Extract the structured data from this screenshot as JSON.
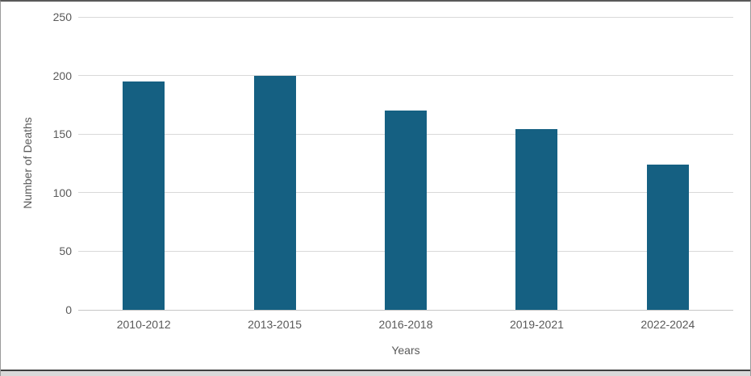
{
  "chart_data": {
    "type": "bar",
    "categories": [
      "2010-2012",
      "2013-2015",
      "2016-2018",
      "2019-2021",
      "2022-2024"
    ],
    "values": [
      195,
      200,
      170,
      154,
      124
    ],
    "xlabel": "Years",
    "ylabel": "Number of Deaths",
    "ylim": [
      0,
      250
    ],
    "yticks": [
      0,
      50,
      100,
      150,
      200,
      250
    ],
    "grid": true,
    "legend": "none",
    "bar_color": "#156082",
    "gridline_color": "#d9d9d9",
    "baseline_color": "#c6c6c6",
    "axis_text_color": "#595959",
    "background_color": "#ffffff"
  }
}
